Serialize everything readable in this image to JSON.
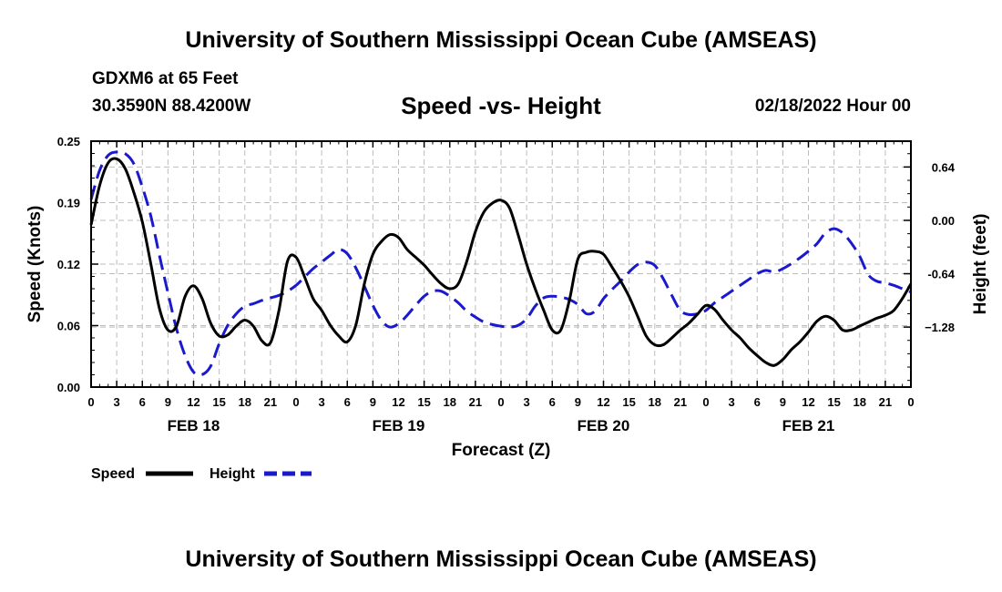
{
  "header": {
    "title": "University of Southern Mississippi Ocean Cube (AMSEAS)",
    "station": "GDXM6 at 65 Feet",
    "latlon": "30.3590N  88.4200W",
    "subtitle": "Speed -vs- Height",
    "datetime": "02/18/2022 Hour 00"
  },
  "footer": {
    "title": "University of Southern Mississippi Ocean Cube (AMSEAS)"
  },
  "chart_data": {
    "type": "line",
    "xlabel": "Forecast (Z)",
    "ylabel": "Speed (Knots)",
    "y2label": "Height (feet)",
    "x_range": [
      0,
      96
    ],
    "ylim": [
      0,
      0.25
    ],
    "y2lim": [
      -2.0,
      0.95
    ],
    "x_tick_labels": [
      "0",
      "3",
      "6",
      "9",
      "12",
      "15",
      "18",
      "21",
      "0",
      "3",
      "6",
      "9",
      "12",
      "15",
      "18",
      "21",
      "0",
      "3",
      "6",
      "9",
      "12",
      "15",
      "18",
      "21",
      "0",
      "3",
      "6",
      "9",
      "12",
      "15",
      "18",
      "21",
      "0"
    ],
    "day_labels": [
      {
        "label": "FEB 18",
        "x": 12
      },
      {
        "label": "FEB 19",
        "x": 36
      },
      {
        "label": "FEB 20",
        "x": 60
      },
      {
        "label": "FEB 21",
        "x": 84
      }
    ],
    "y_ticks": [
      {
        "value": 0.0,
        "label": "0.00"
      },
      {
        "value": 0.0625,
        "label": "0.06"
      },
      {
        "value": 0.125,
        "label": "0.12"
      },
      {
        "value": 0.1875,
        "label": "0.19"
      },
      {
        "value": 0.25,
        "label": "0.25"
      }
    ],
    "y2_ticks": [
      {
        "value": 0.64,
        "label": "0.64"
      },
      {
        "value": 0.0,
        "label": "0.00"
      },
      {
        "value": -0.64,
        "label": "-0.64"
      },
      {
        "value": -1.28,
        "label": "−1.28"
      }
    ],
    "grid": true,
    "series": [
      {
        "name": "Speed",
        "axis": "left",
        "color": "#000000",
        "dash": "solid",
        "points": [
          [
            0,
            0.165
          ],
          [
            1,
            0.205
          ],
          [
            2,
            0.228
          ],
          [
            3,
            0.232
          ],
          [
            4,
            0.222
          ],
          [
            5,
            0.198
          ],
          [
            6,
            0.168
          ],
          [
            7,
            0.125
          ],
          [
            8,
            0.08
          ],
          [
            9,
            0.058
          ],
          [
            10,
            0.062
          ],
          [
            11,
            0.092
          ],
          [
            12,
            0.103
          ],
          [
            13,
            0.09
          ],
          [
            14,
            0.065
          ],
          [
            15,
            0.052
          ],
          [
            16,
            0.053
          ],
          [
            17,
            0.062
          ],
          [
            18,
            0.068
          ],
          [
            19,
            0.062
          ],
          [
            20,
            0.047
          ],
          [
            21,
            0.045
          ],
          [
            22,
            0.078
          ],
          [
            23,
            0.128
          ],
          [
            24,
            0.132
          ],
          [
            25,
            0.112
          ],
          [
            26,
            0.09
          ],
          [
            27,
            0.078
          ],
          [
            28,
            0.063
          ],
          [
            29,
            0.052
          ],
          [
            30,
            0.046
          ],
          [
            31,
            0.063
          ],
          [
            32,
            0.105
          ],
          [
            33,
            0.135
          ],
          [
            34,
            0.148
          ],
          [
            35,
            0.155
          ],
          [
            36,
            0.152
          ],
          [
            37,
            0.14
          ],
          [
            38,
            0.132
          ],
          [
            39,
            0.124
          ],
          [
            40,
            0.114
          ],
          [
            41,
            0.105
          ],
          [
            42,
            0.1
          ],
          [
            43,
            0.105
          ],
          [
            44,
            0.128
          ],
          [
            45,
            0.158
          ],
          [
            46,
            0.178
          ],
          [
            47,
            0.187
          ],
          [
            48,
            0.19
          ],
          [
            49,
            0.182
          ],
          [
            50,
            0.155
          ],
          [
            51,
            0.125
          ],
          [
            52,
            0.1
          ],
          [
            53,
            0.078
          ],
          [
            54,
            0.058
          ],
          [
            55,
            0.058
          ],
          [
            56,
            0.088
          ],
          [
            57,
            0.13
          ],
          [
            58,
            0.137
          ],
          [
            59,
            0.138
          ],
          [
            60,
            0.135
          ],
          [
            61,
            0.122
          ],
          [
            62,
            0.108
          ],
          [
            63,
            0.092
          ],
          [
            64,
            0.072
          ],
          [
            65,
            0.052
          ],
          [
            66,
            0.043
          ],
          [
            67,
            0.043
          ],
          [
            68,
            0.05
          ],
          [
            69,
            0.058
          ],
          [
            70,
            0.065
          ],
          [
            71,
            0.074
          ],
          [
            72,
            0.083
          ],
          [
            73,
            0.079
          ],
          [
            74,
            0.068
          ],
          [
            75,
            0.058
          ],
          [
            76,
            0.05
          ],
          [
            77,
            0.04
          ],
          [
            78,
            0.032
          ],
          [
            79,
            0.025
          ],
          [
            80,
            0.022
          ],
          [
            81,
            0.028
          ],
          [
            82,
            0.038
          ],
          [
            83,
            0.046
          ],
          [
            84,
            0.056
          ],
          [
            85,
            0.067
          ],
          [
            86,
            0.072
          ],
          [
            87,
            0.068
          ],
          [
            88,
            0.058
          ],
          [
            89,
            0.058
          ],
          [
            90,
            0.062
          ],
          [
            91,
            0.066
          ],
          [
            92,
            0.07
          ],
          [
            93,
            0.073
          ],
          [
            94,
            0.078
          ],
          [
            95,
            0.09
          ],
          [
            96,
            0.105
          ]
        ]
      },
      {
        "name": "Height",
        "axis": "right",
        "color": "#1a1acc",
        "dash": "dashed",
        "points": [
          [
            0,
            0.25
          ],
          [
            1,
            0.6
          ],
          [
            2,
            0.78
          ],
          [
            3,
            0.82
          ],
          [
            4,
            0.8
          ],
          [
            5,
            0.68
          ],
          [
            6,
            0.4
          ],
          [
            7,
            0.05
          ],
          [
            8,
            -0.42
          ],
          [
            9,
            -0.87
          ],
          [
            10,
            -1.3
          ],
          [
            11,
            -1.62
          ],
          [
            12,
            -1.82
          ],
          [
            13,
            -1.85
          ],
          [
            14,
            -1.75
          ],
          [
            15,
            -1.48
          ],
          [
            16,
            -1.26
          ],
          [
            17,
            -1.12
          ],
          [
            18,
            -1.03
          ],
          [
            19,
            -1.0
          ],
          [
            20,
            -0.96
          ],
          [
            21,
            -0.93
          ],
          [
            22,
            -0.9
          ],
          [
            23,
            -0.85
          ],
          [
            24,
            -0.78
          ],
          [
            25,
            -0.68
          ],
          [
            26,
            -0.58
          ],
          [
            27,
            -0.5
          ],
          [
            28,
            -0.42
          ],
          [
            29,
            -0.35
          ],
          [
            30,
            -0.4
          ],
          [
            31,
            -0.57
          ],
          [
            32,
            -0.79
          ],
          [
            33,
            -1.02
          ],
          [
            34,
            -1.2
          ],
          [
            35,
            -1.28
          ],
          [
            36,
            -1.24
          ],
          [
            37,
            -1.14
          ],
          [
            38,
            -1.02
          ],
          [
            39,
            -0.91
          ],
          [
            40,
            -0.85
          ],
          [
            41,
            -0.85
          ],
          [
            42,
            -0.91
          ],
          [
            43,
            -0.99
          ],
          [
            44,
            -1.09
          ],
          [
            45,
            -1.16
          ],
          [
            46,
            -1.22
          ],
          [
            47,
            -1.25
          ],
          [
            48,
            -1.27
          ],
          [
            49,
            -1.28
          ],
          [
            50,
            -1.26
          ],
          [
            51,
            -1.18
          ],
          [
            52,
            -1.03
          ],
          [
            53,
            -0.93
          ],
          [
            54,
            -0.91
          ],
          [
            55,
            -0.92
          ],
          [
            56,
            -0.95
          ],
          [
            57,
            -1.01
          ],
          [
            58,
            -1.12
          ],
          [
            59,
            -1.09
          ],
          [
            60,
            -0.94
          ],
          [
            61,
            -0.83
          ],
          [
            62,
            -0.73
          ],
          [
            63,
            -0.62
          ],
          [
            64,
            -0.53
          ],
          [
            65,
            -0.5
          ],
          [
            66,
            -0.54
          ],
          [
            67,
            -0.7
          ],
          [
            68,
            -0.9
          ],
          [
            69,
            -1.08
          ],
          [
            70,
            -1.13
          ],
          [
            71,
            -1.12
          ],
          [
            72,
            -1.08
          ],
          [
            73,
            -0.99
          ],
          [
            74,
            -0.92
          ],
          [
            75,
            -0.85
          ],
          [
            76,
            -0.78
          ],
          [
            77,
            -0.71
          ],
          [
            78,
            -0.64
          ],
          [
            79,
            -0.6
          ],
          [
            80,
            -0.62
          ],
          [
            81,
            -0.58
          ],
          [
            82,
            -0.52
          ],
          [
            83,
            -0.45
          ],
          [
            84,
            -0.37
          ],
          [
            85,
            -0.28
          ],
          [
            86,
            -0.15
          ],
          [
            87,
            -0.1
          ],
          [
            88,
            -0.15
          ],
          [
            89,
            -0.27
          ],
          [
            90,
            -0.43
          ],
          [
            91,
            -0.65
          ],
          [
            92,
            -0.73
          ],
          [
            93,
            -0.75
          ],
          [
            94,
            -0.78
          ],
          [
            95,
            -0.82
          ],
          [
            96,
            -0.86
          ]
        ]
      }
    ]
  },
  "legend": {
    "items": [
      {
        "label": "Speed",
        "color": "#000000",
        "dash": "solid"
      },
      {
        "label": "Height",
        "color": "#1a1acc",
        "dash": "dashed"
      }
    ]
  }
}
